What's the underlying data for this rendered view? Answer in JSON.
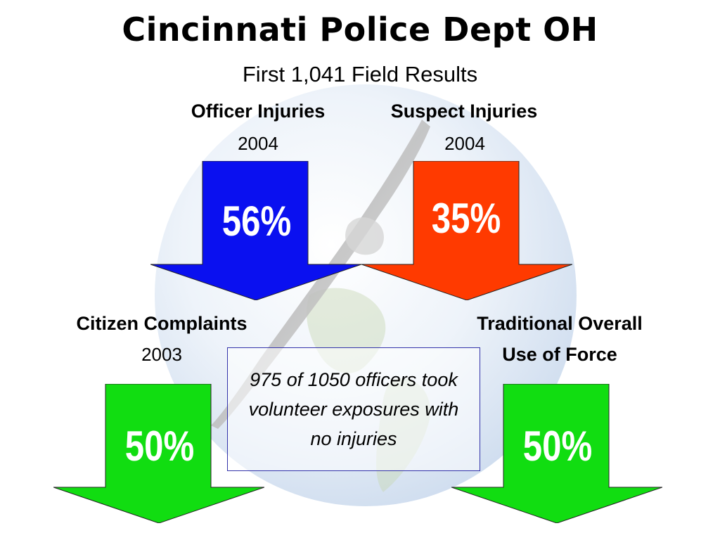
{
  "title": "Cincinnati Police Dept OH",
  "subtitle": "First 1,041 Field Results",
  "panels": {
    "officer_injuries": {
      "label": "Officer Injuries",
      "year": "2004",
      "value": "56%",
      "color": "#0a10f0"
    },
    "suspect_injuries": {
      "label": "Suspect Injuries",
      "year": "2004",
      "value": "35%",
      "color": "#ff3a00"
    },
    "citizen_complaints": {
      "label": "Citizen Complaints",
      "year": "2003",
      "value": "50%",
      "color": "#11dd11"
    },
    "use_of_force": {
      "label_line1": "Traditional Overall",
      "label_line2": "Use of Force",
      "value": "50%",
      "color": "#11dd11"
    }
  },
  "note": "975 of 1050 officers took volunteer exposures with no injuries",
  "background": {
    "globe_color": "#c9d9ee",
    "pen_color": "#c8c8c8"
  }
}
